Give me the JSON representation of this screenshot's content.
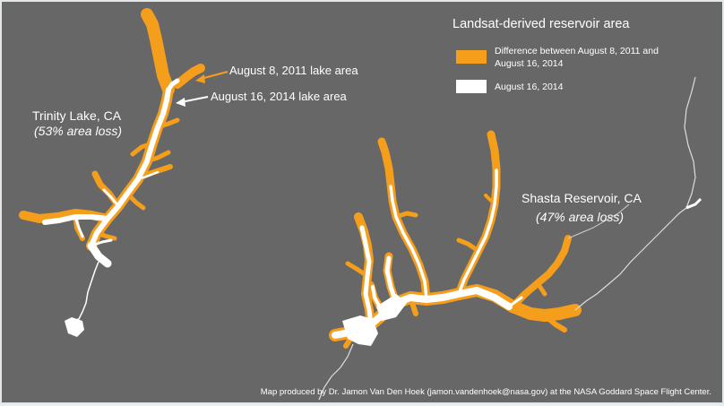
{
  "legend": {
    "title": "Landsat-derived reservoir area",
    "items": [
      {
        "label": "Difference between August 8, 2011 and August 16, 2014",
        "color": "#f59e1c"
      },
      {
        "label": "August 16, 2014",
        "color": "#ffffff"
      }
    ]
  },
  "lakes": {
    "trinity": {
      "name": "Trinity Lake, CA",
      "loss": "(53% area loss)"
    },
    "shasta": {
      "name": "Shasta Reservoir, CA",
      "loss": "(47% area loss)"
    }
  },
  "annotations": {
    "date_2011": "August 8, 2011 lake area",
    "date_2014": "August 16, 2014 lake area"
  },
  "credit": "Map produced by Dr. Jamon Van Den Hoek (jamon.vandenhoek@nasa.gov) at the NASA Goddard Space Flight Center.",
  "colors": {
    "background": "#676767",
    "loss": "#f59e1c",
    "water": "#ffffff"
  }
}
